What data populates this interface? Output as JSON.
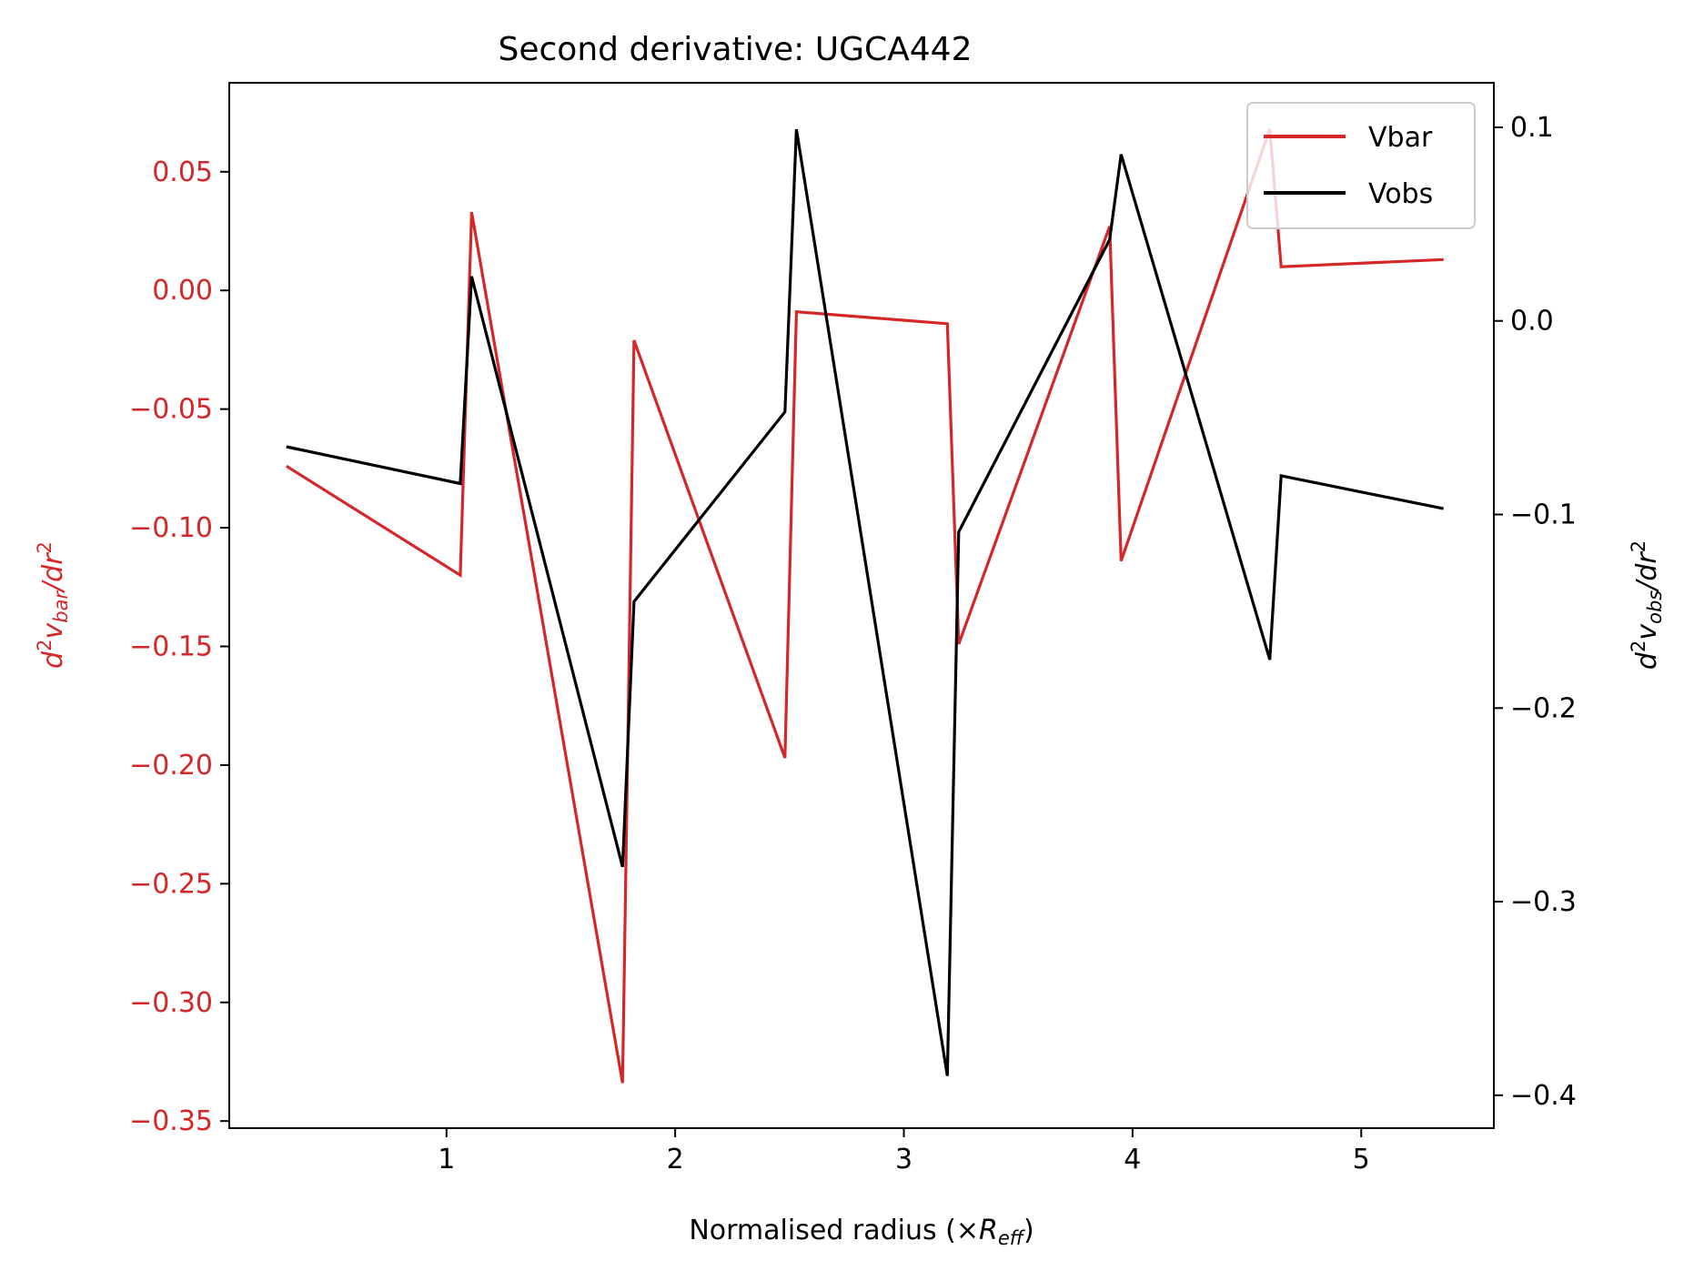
{
  "chart_data": {
    "type": "line",
    "title": "Second derivative: UGCA442",
    "xlabel": {
      "prefix": "Normalised radius (×",
      "symbol": "R",
      "sub": "eff",
      "suffix": ")"
    },
    "ylabel_left": {
      "d": "d",
      "sup1": "2",
      "v": "v",
      "sub": "bar",
      "rest": "/dr",
      "sup2": "2"
    },
    "ylabel_right": {
      "d": "d",
      "sup1": "2",
      "v": "v",
      "sub": "obs",
      "rest": "/dr",
      "sup2": "2"
    },
    "xlim": [
      0.05,
      5.58
    ],
    "ylim_left": [
      -0.353,
      0.0875
    ],
    "ylim_right": [
      -0.417,
      0.123
    ],
    "x_ticks": [
      1,
      2,
      3,
      4,
      5
    ],
    "x_tick_labels": [
      "1",
      "2",
      "3",
      "4",
      "5"
    ],
    "y_left_ticks": [
      0.05,
      0.0,
      -0.05,
      -0.1,
      -0.15,
      -0.2,
      -0.25,
      -0.3,
      -0.35
    ],
    "y_left_tick_labels": [
      "0.05",
      "0.00",
      "−0.05",
      "−0.10",
      "−0.15",
      "−0.20",
      "−0.25",
      "−0.30",
      "−0.35"
    ],
    "y_right_ticks": [
      0.1,
      0.0,
      -0.1,
      -0.2,
      -0.3,
      -0.4
    ],
    "y_right_tick_labels": [
      "0.1",
      "0.0",
      "−0.1",
      "−0.2",
      "−0.3",
      "−0.4"
    ],
    "legend_position": "top-right",
    "grid": false,
    "series": [
      {
        "name": "Vbar",
        "axis": "left",
        "color": "#d62728",
        "x": [
          0.3,
          1.06,
          1.11,
          1.77,
          1.82,
          2.48,
          2.53,
          3.19,
          3.24,
          3.9,
          3.95,
          4.6,
          4.65,
          5.36
        ],
        "y": [
          -0.074,
          -0.12,
          0.033,
          -0.334,
          -0.021,
          -0.197,
          -0.009,
          -0.014,
          -0.149,
          0.027,
          -0.114,
          0.068,
          0.01,
          0.013
        ]
      },
      {
        "name": "Vobs",
        "axis": "right",
        "color": "#000000",
        "x": [
          0.3,
          1.06,
          1.11,
          1.77,
          1.82,
          2.48,
          2.53,
          3.19,
          3.24,
          3.9,
          3.95,
          4.6,
          4.65,
          5.36
        ],
        "y": [
          -0.065,
          -0.084,
          0.023,
          -0.282,
          -0.145,
          -0.047,
          0.099,
          -0.39,
          -0.109,
          0.042,
          0.086,
          -0.175,
          -0.08,
          -0.097
        ]
      }
    ],
    "colors": {
      "left_axis": "#d62728",
      "right_axis": "#000000",
      "frame": "#000000"
    }
  }
}
